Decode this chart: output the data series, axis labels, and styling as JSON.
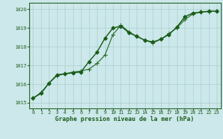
{
  "line1_smooth": {
    "x": [
      0,
      1,
      2,
      3,
      4,
      5,
      6,
      7,
      8,
      9,
      10,
      11,
      12,
      13,
      14,
      15,
      16,
      17,
      18,
      19,
      20,
      21,
      22,
      23
    ],
    "y": [
      1015.25,
      1015.55,
      1016.05,
      1016.45,
      1016.55,
      1016.65,
      1016.7,
      1016.8,
      1017.1,
      1017.55,
      1018.65,
      1019.15,
      1018.8,
      1018.55,
      1018.35,
      1018.2,
      1018.4,
      1018.7,
      1019.0,
      1019.45,
      1019.75,
      1019.85,
      1019.88,
      1019.9
    ],
    "color": "#2a6e2a",
    "marker": "+",
    "markersize": 4,
    "linewidth": 0.9
  },
  "line2_jagged": {
    "x": [
      0,
      1,
      2,
      3,
      4,
      5,
      6,
      7,
      8,
      9,
      10,
      11,
      12,
      13,
      14,
      15,
      16,
      17,
      18,
      19,
      20,
      21,
      22,
      23
    ],
    "y": [
      1015.25,
      1015.5,
      1016.05,
      1016.5,
      1016.55,
      1016.6,
      1016.65,
      1017.2,
      1017.7,
      1018.45,
      1019.0,
      1019.1,
      1018.75,
      1018.55,
      1018.35,
      1018.25,
      1018.4,
      1018.65,
      1019.05,
      1019.6,
      1019.8,
      1019.85,
      1019.9,
      1019.9
    ],
    "color": "#1a5c1a",
    "marker": "D",
    "markersize": 2.5,
    "linewidth": 1.1
  },
  "background_color": "#cce8ea",
  "grid_color": "#aacccc",
  "xlabel": "Graphe pression niveau de la mer (hPa)",
  "xlim": [
    -0.5,
    23.5
  ],
  "ylim": [
    1014.7,
    1020.35
  ],
  "yticks": [
    1015,
    1016,
    1017,
    1018,
    1019,
    1020
  ],
  "xticks": [
    0,
    1,
    2,
    3,
    4,
    5,
    6,
    7,
    8,
    9,
    10,
    11,
    12,
    13,
    14,
    15,
    16,
    17,
    18,
    19,
    20,
    21,
    22,
    23
  ],
  "tick_color": "#1a5c1a",
  "tick_fontsize": 5.0,
  "label_fontsize": 6.2
}
